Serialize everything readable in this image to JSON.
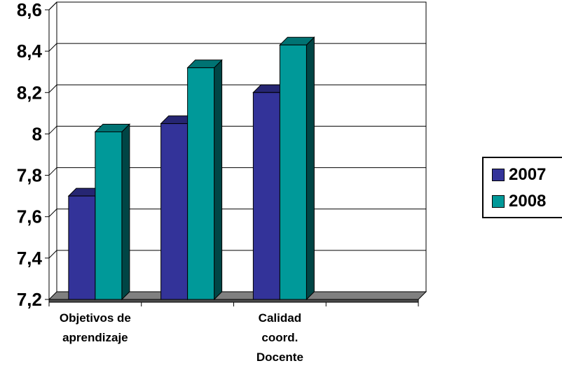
{
  "chart_data": {
    "type": "bar",
    "categories": [
      "Objetivos de aprendizaje",
      "",
      "Calidad coord. Docente",
      ""
    ],
    "category_lines": [
      [
        "Objetivos de",
        "aprendizaje"
      ],
      [],
      [
        "Calidad",
        "coord.",
        "Docente"
      ],
      []
    ],
    "series": [
      {
        "name": "2007",
        "values": [
          7.7,
          8.05,
          8.2,
          null
        ],
        "color": "#333399"
      },
      {
        "name": "2008",
        "values": [
          8.01,
          8.32,
          8.43,
          null
        ],
        "color": "#009999"
      }
    ],
    "ylim": [
      7.2,
      8.6
    ],
    "yticks": [
      "7,2",
      "7,4",
      "7,6",
      "7,8",
      "8",
      "8,2",
      "8,4",
      "8,6"
    ],
    "grid": true,
    "legend_position": "right",
    "floor_color": "#808080"
  }
}
